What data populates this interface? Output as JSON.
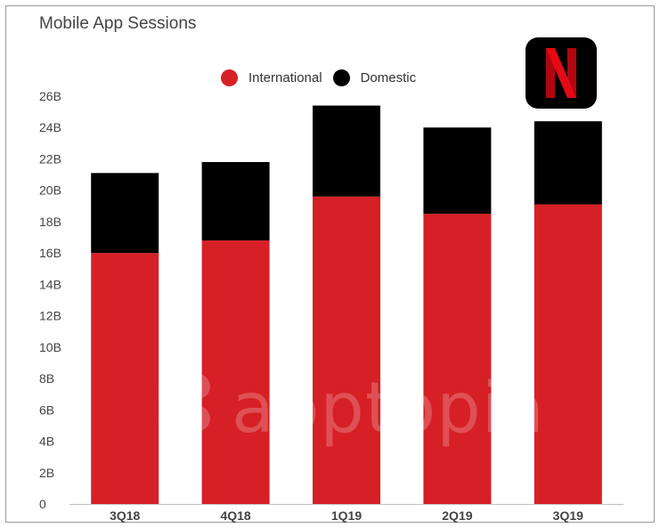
{
  "colors": {
    "international": "#d71f26",
    "domestic": "#000000",
    "axis_text": "#444444",
    "baseline": "#bfbfbf"
  },
  "logo": {
    "icon": "netflix-n-logo",
    "letter": "N"
  },
  "watermark": {
    "text": "apptopia"
  },
  "chart_data": {
    "type": "bar",
    "stacked": true,
    "title": "Mobile App Sessions",
    "xlabel": "",
    "ylabel": "",
    "categories": [
      "3Q18",
      "4Q18",
      "1Q19",
      "2Q19",
      "3Q19"
    ],
    "series": [
      {
        "name": "International",
        "values": [
          16.0,
          16.8,
          19.6,
          18.5,
          19.1
        ]
      },
      {
        "name": "Domestic",
        "values": [
          5.1,
          5.0,
          5.8,
          5.5,
          5.3
        ]
      }
    ],
    "ylim": [
      0,
      26
    ],
    "y_ticks": [
      "0",
      "2B",
      "4B",
      "6B",
      "8B",
      "10B",
      "12B",
      "14B",
      "16B",
      "18B",
      "20B",
      "22B",
      "24B",
      "26B"
    ],
    "y_tick_values": [
      0,
      2,
      4,
      6,
      8,
      10,
      12,
      14,
      16,
      18,
      20,
      22,
      24,
      26
    ],
    "legend_position": "top-center",
    "grid": false
  }
}
